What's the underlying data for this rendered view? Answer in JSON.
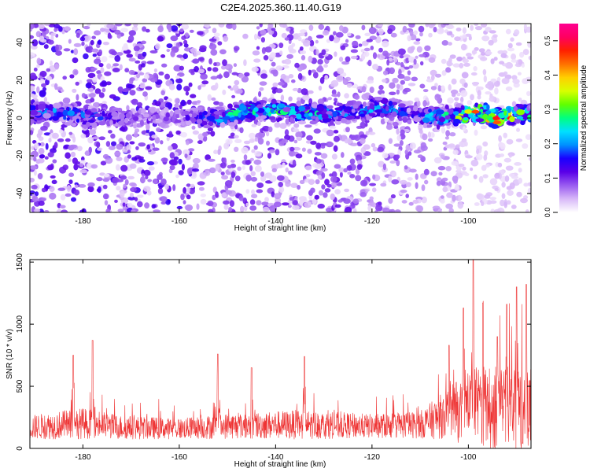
{
  "title": "C2E4.2025.360.11.40.G19",
  "chart_data": [
    {
      "type": "heatmap",
      "title": "C2E4.2025.360.11.40.G19",
      "xlabel": "Height of straight line (km)",
      "ylabel": "Frequency (Hz)",
      "xlim": [
        -191,
        -87
      ],
      "ylim": [
        -50,
        50
      ],
      "x_ticks": [
        -180,
        -160,
        -140,
        -120,
        -100
      ],
      "y_ticks": [
        -40,
        -20,
        0,
        20,
        40
      ],
      "colorbar": {
        "label": "Normalized spectral amplitude",
        "range": [
          0.0,
          0.55
        ],
        "ticks": [
          0.0,
          0.1,
          0.2,
          0.3,
          0.4,
          0.5
        ],
        "colors": [
          "#ffffff",
          "#d8b8f8",
          "#9a5cf0",
          "#5a00e8",
          "#1a00ff",
          "#0090ff",
          "#00e0ff",
          "#00ff80",
          "#60ff00",
          "#d8ff00",
          "#ffd000",
          "#ff7000",
          "#ff2000",
          "#ff0060",
          "#ff0090"
        ]
      },
      "signal_band": [
        {
          "x": -185,
          "freq": 3,
          "amp": 0.22
        },
        {
          "x": -178,
          "freq": 0,
          "amp": 0.2
        },
        {
          "x": -170,
          "freq": 0,
          "amp": 0.12
        },
        {
          "x": -160,
          "freq": 0,
          "amp": 0.1
        },
        {
          "x": -152,
          "freq": 0,
          "amp": 0.25
        },
        {
          "x": -146,
          "freq": 4,
          "amp": 0.3
        },
        {
          "x": -140,
          "freq": 4,
          "amp": 0.28
        },
        {
          "x": -134,
          "freq": 3,
          "amp": 0.3
        },
        {
          "x": -128,
          "freq": 2,
          "amp": 0.2
        },
        {
          "x": -122,
          "freq": 4,
          "amp": 0.22
        },
        {
          "x": -118,
          "freq": 6,
          "amp": 0.24
        },
        {
          "x": -112,
          "freq": 2,
          "amp": 0.15
        },
        {
          "x": -106,
          "freq": 0,
          "amp": 0.28
        },
        {
          "x": -102,
          "freq": 1,
          "amp": 0.35
        },
        {
          "x": -98,
          "freq": 3,
          "amp": 0.45
        },
        {
          "x": -94,
          "freq": 0,
          "amp": 0.55
        },
        {
          "x": -90,
          "freq": 2,
          "amp": 0.35
        },
        {
          "x": -87,
          "freq": 2,
          "amp": 0.3
        }
      ],
      "noise_level": [
        {
          "x": -191,
          "amp": 0.12
        },
        {
          "x": -160,
          "amp": 0.12
        },
        {
          "x": -150,
          "amp": 0.09
        },
        {
          "x": -130,
          "amp": 0.1
        },
        {
          "x": -110,
          "amp": 0.08
        },
        {
          "x": -100,
          "amp": 0.04
        },
        {
          "x": -87,
          "amp": 0.03
        }
      ]
    },
    {
      "type": "line",
      "xlabel": "Height of straight line (km)",
      "ylabel": "SNR (10 * v/v)",
      "xlim": [
        -191,
        -87
      ],
      "ylim": [
        0,
        1520
      ],
      "x_ticks": [
        -180,
        -160,
        -140,
        -120,
        -100
      ],
      "y_ticks": [
        0,
        500,
        1000,
        1500
      ],
      "color": "#ee3333",
      "baseline": [
        {
          "x": -191,
          "base": 160,
          "spread": 140
        },
        {
          "x": -180,
          "base": 190,
          "spread": 180
        },
        {
          "x": -172,
          "base": 160,
          "spread": 140
        },
        {
          "x": -160,
          "base": 150,
          "spread": 120
        },
        {
          "x": -150,
          "base": 170,
          "spread": 150
        },
        {
          "x": -135,
          "base": 180,
          "spread": 170
        },
        {
          "x": -120,
          "base": 170,
          "spread": 140
        },
        {
          "x": -110,
          "base": 180,
          "spread": 160
        },
        {
          "x": -104,
          "base": 260,
          "spread": 300
        },
        {
          "x": -98,
          "base": 300,
          "spread": 500
        },
        {
          "x": -87,
          "base": 260,
          "spread": 450
        }
      ],
      "peaks": [
        {
          "x": -178,
          "y": 870
        },
        {
          "x": -182,
          "y": 750
        },
        {
          "x": -152,
          "y": 760
        },
        {
          "x": -134,
          "y": 740
        },
        {
          "x": -145,
          "y": 650
        },
        {
          "x": -104,
          "y": 830
        },
        {
          "x": -101,
          "y": 1130
        },
        {
          "x": -99,
          "y": 1520
        },
        {
          "x": -97,
          "y": 1170
        },
        {
          "x": -94,
          "y": 900
        },
        {
          "x": -92,
          "y": 1160
        },
        {
          "x": -90,
          "y": 1300
        },
        {
          "x": -88,
          "y": 1320
        }
      ]
    }
  ]
}
